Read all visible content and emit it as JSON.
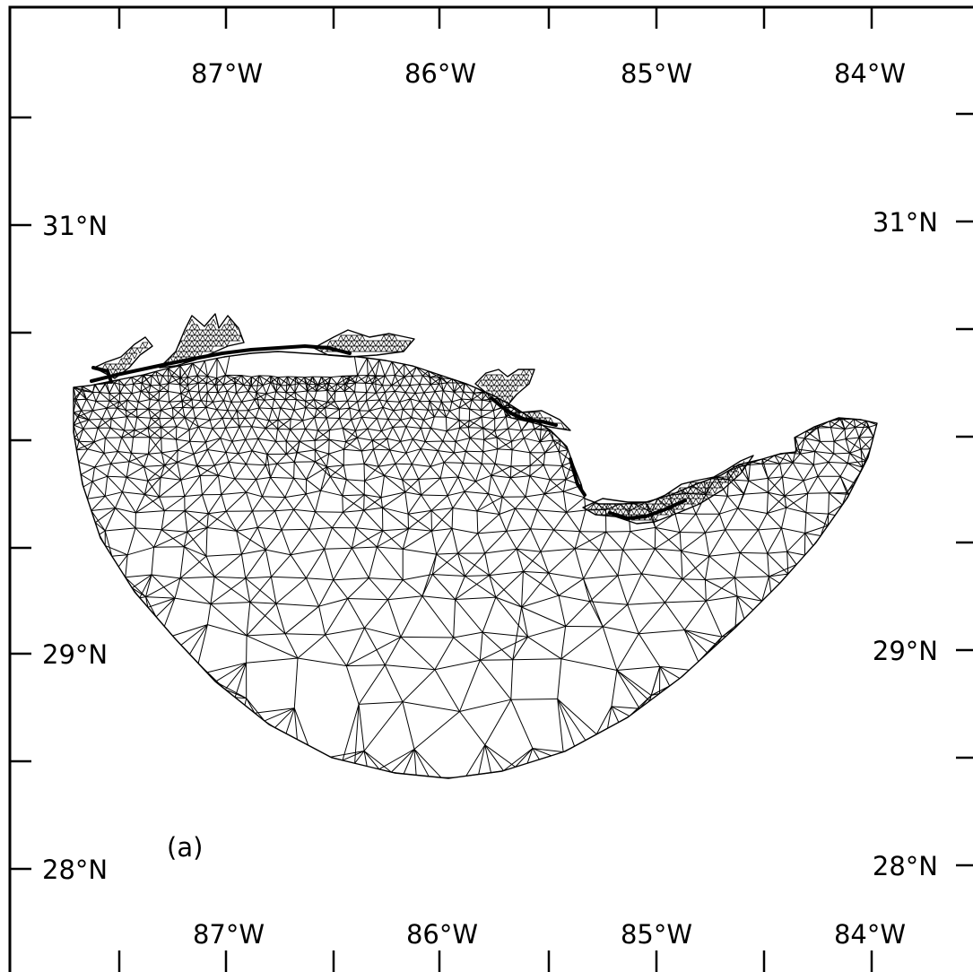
{
  "map": {
    "panel_label": "(a)",
    "longitude_labels": [
      "87°W",
      "86°W",
      "85°W",
      "84°W"
    ],
    "latitude_labels": [
      "31°N",
      "29°N",
      "28°N"
    ]
  },
  "colors": {
    "mesh": "#000000",
    "background": "#ffffff"
  }
}
